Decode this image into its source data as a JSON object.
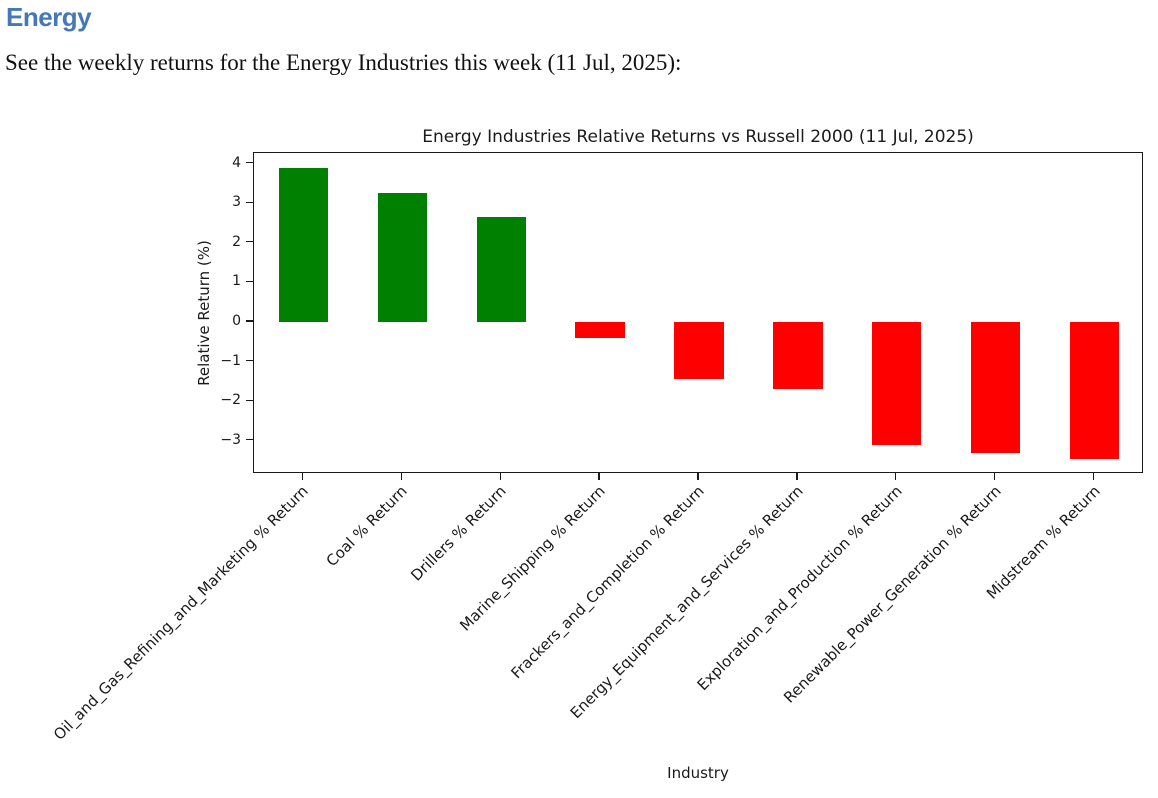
{
  "page": {
    "heading": "Energy",
    "subtitle": "See the weekly returns for the Energy Industries this week (11 Jul, 2025):"
  },
  "colors": {
    "heading_blue": "#4478b9",
    "positive_green": "#008000",
    "negative_red": "#ff0000",
    "axis_black": "#1a1a1a"
  },
  "chart_data": {
    "type": "bar",
    "title": "Energy Industries Relative Returns vs Russell 2000 (11 Jul, 2025)",
    "xlabel": "Industry",
    "ylabel": "Relative Return (%)",
    "categories": [
      "Oil_and_Gas_Refining_and_Marketing % Return",
      "Coal % Return",
      "Drillers % Return",
      "Marine_Shipping % Return",
      "Frackers_and_Completion % Return",
      "Energy_Equipment_and_Services % Return",
      "Exploration_and_Production % Return",
      "Renewable_Power_Generation % Return",
      "Midstream % Return"
    ],
    "values": [
      3.9,
      3.25,
      2.65,
      -0.4,
      -1.45,
      -1.7,
      -3.1,
      -3.3,
      -3.45
    ],
    "yticks": [
      4,
      3,
      2,
      1,
      0,
      -1,
      -2,
      -3
    ],
    "ylim": [
      -3.84,
      4.27
    ],
    "grid": false,
    "legend": null,
    "positive_color": "#008000",
    "negative_color": "#ff0000",
    "xtick_rotation_deg": 45
  }
}
